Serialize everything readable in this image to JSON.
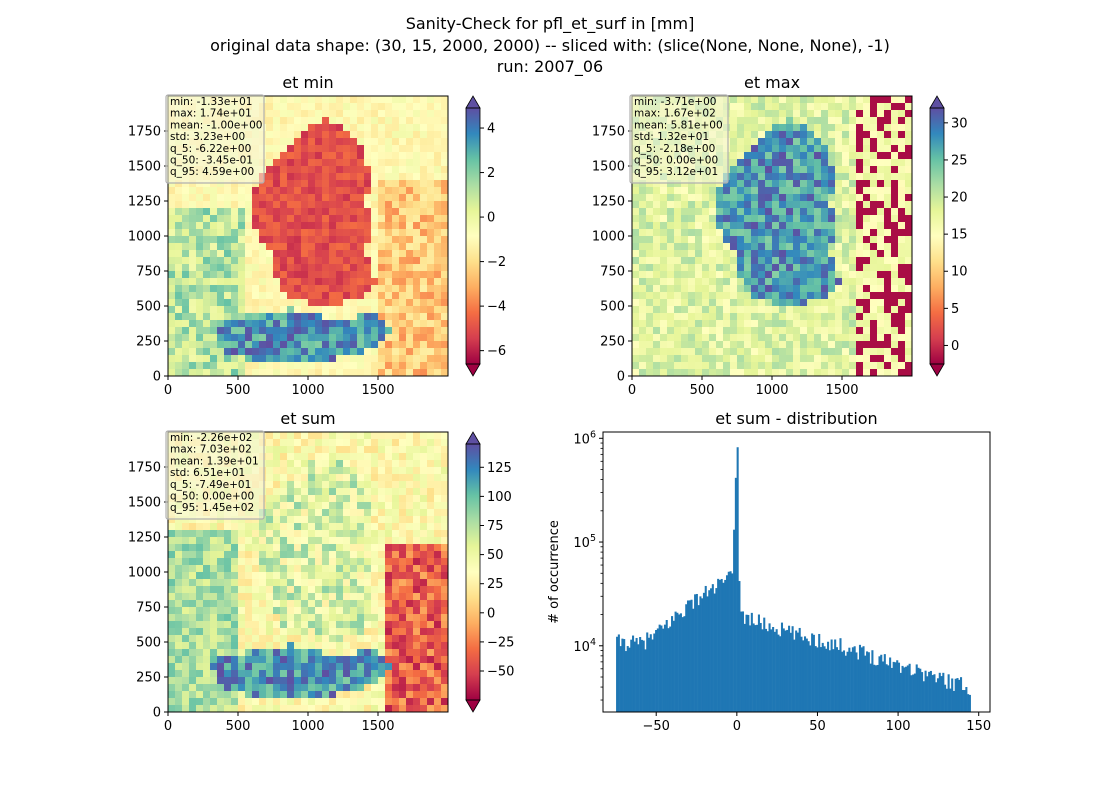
{
  "figure": {
    "title_lines": [
      "Sanity-Check for pfl_et_surf in [mm]",
      "original data shape: (30, 15, 2000, 2000) -- sliced with: (slice(None, None, None), -1)",
      "run: 2007_06"
    ]
  },
  "chart_data": [
    {
      "type": "heatmap",
      "title": "et min",
      "colormap": "Spectral",
      "xlim": [
        0,
        2000
      ],
      "ylim": [
        0,
        2000
      ],
      "xticks": [
        0,
        500,
        1000,
        1500
      ],
      "yticks": [
        0,
        250,
        500,
        750,
        1000,
        1250,
        1500,
        1750
      ],
      "colorbar": {
        "min": -6.6,
        "max": 4.9,
        "ticks": [
          4,
          2,
          0,
          -2,
          -4,
          -6
        ],
        "tick_labels": [
          "4",
          "2",
          "0",
          "−2",
          "−4",
          "−6"
        ]
      },
      "stats": [
        "min: -1.33e+01",
        "max: 1.74e+01",
        "mean: -1.00e+00",
        "std: 3.23e+00",
        "q_5: -6.22e+00",
        "q_50: -3.45e-01",
        "q_95: 4.59e+00"
      ]
    },
    {
      "type": "heatmap",
      "title": "et max",
      "colormap": "Spectral",
      "xlim": [
        0,
        2000
      ],
      "ylim": [
        0,
        2000
      ],
      "xticks": [
        0,
        500,
        1000,
        1500
      ],
      "yticks": [
        0,
        250,
        500,
        750,
        1000,
        1250,
        1500,
        1750
      ],
      "colorbar": {
        "min": -2.5,
        "max": 32,
        "ticks": [
          30,
          25,
          20,
          15,
          10,
          5,
          0
        ],
        "tick_labels": [
          "30",
          "25",
          "20",
          "15",
          "10",
          "5",
          "0"
        ]
      },
      "stats": [
        "min: -3.71e+00",
        "max: 1.67e+02",
        "mean: 5.81e+00",
        "std: 1.32e+01",
        "q_5: -2.18e+00",
        "q_50: 0.00e+00",
        "q_95: 3.12e+01"
      ]
    },
    {
      "type": "heatmap",
      "title": "et sum",
      "colormap": "Spectral",
      "xlim": [
        0,
        2000
      ],
      "ylim": [
        0,
        2000
      ],
      "xticks": [
        0,
        500,
        1000,
        1500
      ],
      "yticks": [
        0,
        250,
        500,
        750,
        1000,
        1250,
        1500,
        1750
      ],
      "colorbar": {
        "min": -74.9,
        "max": 145,
        "ticks": [
          125,
          100,
          75,
          50,
          25,
          0,
          -25,
          -50
        ],
        "tick_labels": [
          "125",
          "100",
          "75",
          "50",
          "25",
          "0",
          "−25",
          "−50"
        ]
      },
      "stats": [
        "min: -2.26e+02",
        "max: 7.03e+02",
        "mean: 1.39e+01",
        "std: 6.51e+01",
        "q_5: -7.49e+01",
        "q_50: 0.00e+00",
        "q_95: 1.45e+02"
      ]
    },
    {
      "type": "bar",
      "title": "et sum - distribution",
      "ylabel": "# of occurrence",
      "yscale": "log",
      "xlim": [
        -83,
        157
      ],
      "ylim": [
        2300,
        1150000
      ],
      "xticks": [
        -50,
        0,
        50,
        100,
        150
      ],
      "xtick_labels": [
        "−50",
        "0",
        "50",
        "100",
        "150"
      ],
      "ytick_labels": [
        {
          "base": "10",
          "exp": "4",
          "value": 10000
        },
        {
          "base": "10",
          "exp": "5",
          "value": 100000
        },
        {
          "base": "10",
          "exp": "6",
          "value": 1000000
        }
      ],
      "color": "#1f77b4",
      "bin_range": [
        -74.9,
        145
      ],
      "bins": 200,
      "anchors": [
        [
          -74.9,
          11000
        ],
        [
          -60,
          10500
        ],
        [
          -50,
          13000
        ],
        [
          -40,
          18000
        ],
        [
          -30,
          25000
        ],
        [
          -20,
          32000
        ],
        [
          -10,
          40000
        ],
        [
          -3,
          46000
        ],
        [
          0,
          820000
        ],
        [
          2,
          20000
        ],
        [
          10,
          18000
        ],
        [
          20,
          15500
        ],
        [
          30,
          14000
        ],
        [
          40,
          12500
        ],
        [
          50,
          11500
        ],
        [
          60,
          10500
        ],
        [
          70,
          9500
        ],
        [
          80,
          8500
        ],
        [
          90,
          7500
        ],
        [
          100,
          6800
        ],
        [
          110,
          6000
        ],
        [
          120,
          5200
        ],
        [
          130,
          4700
        ],
        [
          140,
          4200
        ],
        [
          145,
          4000
        ]
      ]
    }
  ]
}
